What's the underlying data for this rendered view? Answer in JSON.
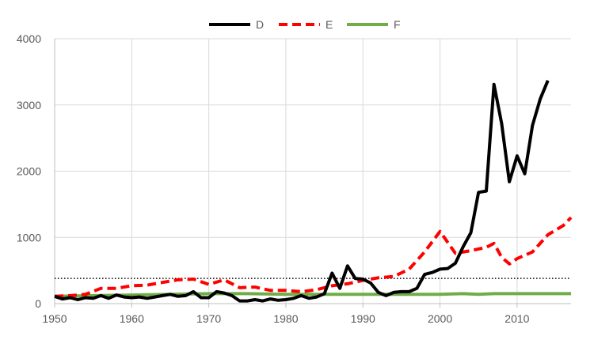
{
  "chart_data": {
    "type": "line",
    "title": "",
    "xlabel": "",
    "ylabel": "",
    "xlim": [
      1950,
      2017
    ],
    "ylim": [
      0,
      4000
    ],
    "x_ticks": [
      1950,
      1960,
      1970,
      1980,
      1990,
      2000,
      2010
    ],
    "y_ticks": [
      0,
      1000,
      2000,
      3000,
      4000
    ],
    "grid": "both",
    "legend_position": "top-center",
    "reference_line": {
      "y": 380,
      "style": "dotted",
      "color": "#000000"
    },
    "series": [
      {
        "name": "D",
        "color": "#000000",
        "dash": "solid",
        "x": [
          1950,
          1951,
          1952,
          1953,
          1954,
          1955,
          1956,
          1957,
          1958,
          1959,
          1960,
          1961,
          1962,
          1963,
          1964,
          1965,
          1966,
          1967,
          1968,
          1969,
          1970,
          1971,
          1972,
          1973,
          1974,
          1975,
          1976,
          1977,
          1978,
          1979,
          1980,
          1981,
          1982,
          1983,
          1984,
          1985,
          1986,
          1987,
          1988,
          1989,
          1990,
          1991,
          1992,
          1993,
          1994,
          1995,
          1996,
          1997,
          1998,
          1999,
          2000,
          2001,
          2002,
          2003,
          2004,
          2005,
          2006,
          2007,
          2008,
          2009,
          2010,
          2011,
          2012,
          2013,
          2014
        ],
        "values": [
          110,
          70,
          90,
          60,
          90,
          80,
          120,
          80,
          130,
          100,
          90,
          100,
          80,
          100,
          120,
          140,
          110,
          120,
          180,
          90,
          90,
          180,
          160,
          120,
          40,
          40,
          60,
          40,
          70,
          50,
          60,
          80,
          120,
          80,
          100,
          150,
          460,
          230,
          570,
          380,
          370,
          310,
          170,
          120,
          170,
          180,
          180,
          230,
          440,
          470,
          520,
          530,
          610,
          860,
          1070,
          1680,
          1700,
          3310,
          2720,
          1840,
          2230,
          1960,
          2690,
          3090,
          3370
        ]
      },
      {
        "name": "E",
        "color": "#ff0000",
        "dash": "dashed",
        "x": [
          1950,
          1952,
          1954,
          1956,
          1958,
          1960,
          1962,
          1964,
          1966,
          1968,
          1970,
          1972,
          1974,
          1976,
          1978,
          1980,
          1982,
          1984,
          1986,
          1988,
          1990,
          1992,
          1994,
          1996,
          1998,
          2000,
          2002,
          2004,
          2006,
          2007,
          2008,
          2009,
          2010,
          2012,
          2014,
          2016,
          2017
        ],
        "values": [
          110,
          120,
          140,
          230,
          230,
          270,
          280,
          320,
          360,
          370,
          290,
          360,
          240,
          250,
          200,
          200,
          180,
          210,
          270,
          300,
          350,
          390,
          410,
          520,
          780,
          1090,
          760,
          800,
          850,
          910,
          700,
          600,
          680,
          780,
          1040,
          1180,
          1300
        ]
      },
      {
        "name": "F",
        "color": "#70ad47",
        "dash": "solid",
        "x": [
          1950,
          1955,
          1960,
          1965,
          1970,
          1975,
          1980,
          1985,
          1990,
          1995,
          2000,
          2003,
          2005,
          2007,
          2010,
          2015,
          2017
        ],
        "values": [
          110,
          120,
          130,
          140,
          150,
          150,
          140,
          140,
          140,
          140,
          140,
          150,
          140,
          150,
          150,
          150,
          150
        ]
      }
    ]
  }
}
